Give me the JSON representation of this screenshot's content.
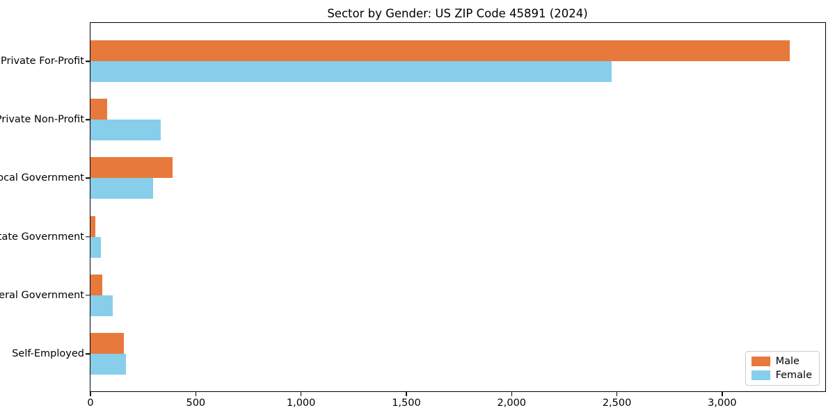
{
  "chart_data": {
    "type": "bar",
    "orientation": "horizontal",
    "title": "Sector by Gender: US ZIP Code 45891 (2024)",
    "xlabel": "",
    "ylabel": "",
    "categories": [
      "Private For-Profit",
      "Private Non-Profit",
      "Local Government",
      "State Government",
      "Federal Government",
      "Self-Employed"
    ],
    "series": [
      {
        "name": "Male",
        "color": "#E8793C",
        "values": [
          3320,
          80,
          390,
          22,
          55,
          160
        ]
      },
      {
        "name": "Female",
        "color": "#87CEEB",
        "values": [
          2475,
          335,
          297,
          50,
          105,
          170
        ]
      }
    ],
    "xlim": [
      0,
      3486
    ],
    "x_ticks": [
      {
        "value": 0,
        "label": "0"
      },
      {
        "value": 500,
        "label": "500"
      },
      {
        "value": 1000,
        "label": "1,000"
      },
      {
        "value": 1500,
        "label": "1,500"
      },
      {
        "value": 2000,
        "label": "2,000"
      },
      {
        "value": 2500,
        "label": "2,500"
      },
      {
        "value": 3000,
        "label": "3,000"
      }
    ],
    "grid": false,
    "legend": {
      "position": "lower right",
      "entries": [
        "Male",
        "Female"
      ]
    }
  }
}
